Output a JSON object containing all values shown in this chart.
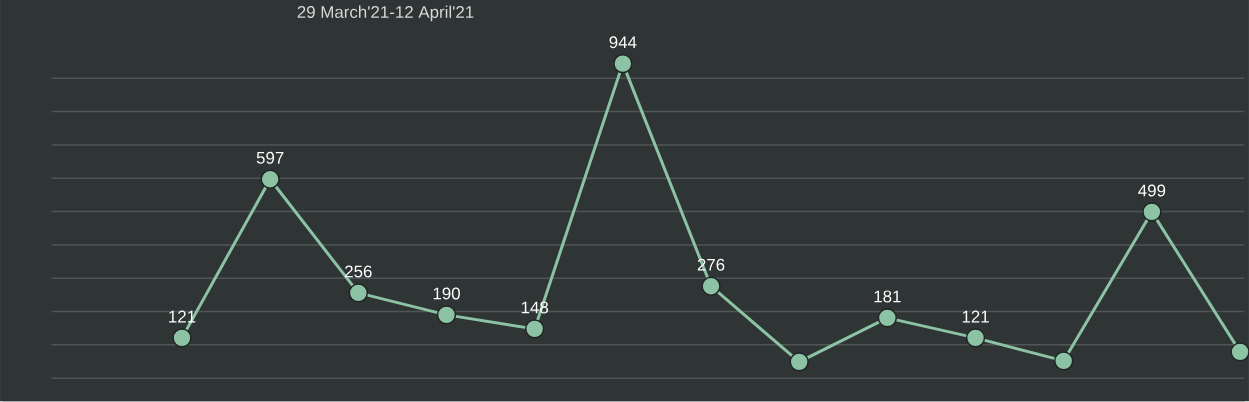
{
  "chart_data": {
    "type": "line",
    "title": "29 March'21-12 April'21",
    "categories": [
      null,
      null,
      null,
      null,
      null,
      null,
      null,
      null,
      null,
      null,
      null,
      null,
      null
    ],
    "series": [
      {
        "color": "#8cc3a4",
        "values": [
          121,
          597,
          256,
          190,
          148,
          944,
          276,
          49,
          181,
          121,
          52,
          499,
          79
        ],
        "value_labels": [
          "121",
          "597",
          "256",
          "190",
          "148",
          "944",
          "276",
          null,
          "181",
          "121",
          null,
          "499",
          null
        ]
      }
    ],
    "grid": "y",
    "marker": "circle",
    "tick_labels": false
  }
}
